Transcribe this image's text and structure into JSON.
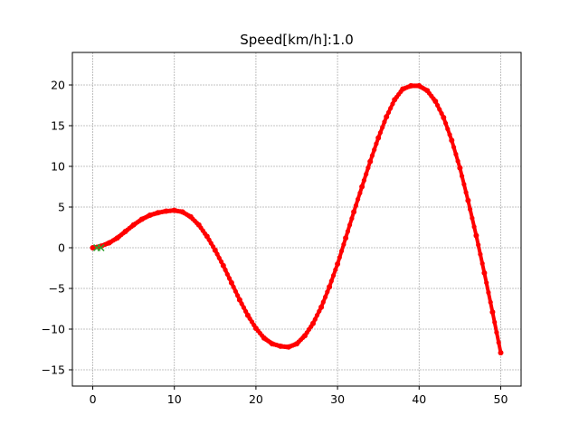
{
  "chart_data": {
    "type": "scatter",
    "title": "Speed[km/h]:1.0",
    "xlabel": "",
    "ylabel": "",
    "xlim": [
      -2.5,
      52.5
    ],
    "ylim": [
      -17,
      24
    ],
    "x_ticks": [
      0,
      10,
      20,
      30,
      40,
      50
    ],
    "x_tick_labels": [
      "0",
      "10",
      "20",
      "30",
      "40",
      "50"
    ],
    "y_ticks": [
      -15,
      -10,
      -5,
      0,
      5,
      10,
      15,
      20
    ],
    "y_tick_labels": [
      "−15",
      "−10",
      "−5",
      "0",
      "5",
      "10",
      "15",
      "20"
    ],
    "grid": true,
    "colors": {
      "path": "#ff0000",
      "marker": "#2ca02c",
      "grid": "#b0b0b0"
    },
    "series": [
      {
        "marker": "dot",
        "color": "#ff0000",
        "x": [
          0,
          1,
          2,
          3,
          4,
          5,
          6,
          7,
          8,
          9,
          10,
          11,
          12,
          13,
          14,
          15,
          16,
          17,
          18,
          19,
          20,
          21,
          22,
          23,
          24,
          25,
          26,
          27,
          28,
          29,
          30,
          31,
          32,
          33,
          34,
          35,
          36,
          37,
          38,
          39,
          40,
          41,
          42,
          43,
          44,
          45,
          46,
          47,
          48,
          49,
          50
        ],
        "y": [
          0,
          0.2,
          0.6,
          1.2,
          2.0,
          2.8,
          3.5,
          4.0,
          4.3,
          4.5,
          4.6,
          4.4,
          3.8,
          2.8,
          1.4,
          -0.3,
          -2.2,
          -4.3,
          -6.4,
          -8.3,
          -9.9,
          -11.1,
          -11.8,
          -12.1,
          -12.2,
          -11.8,
          -10.8,
          -9.3,
          -7.3,
          -4.8,
          -2.0,
          1.2,
          4.4,
          7.5,
          10.6,
          13.5,
          16.1,
          18.2,
          19.5,
          19.9,
          19.9,
          19.3,
          18.0,
          16.0,
          13.2,
          9.8,
          5.8,
          1.5,
          -3.1,
          -7.9,
          -12.9
        ]
      },
      {
        "marker": "x",
        "color": "#2ca02c",
        "x": [
          0.5,
          1.0
        ],
        "y": [
          0.0,
          0.0
        ]
      }
    ]
  }
}
